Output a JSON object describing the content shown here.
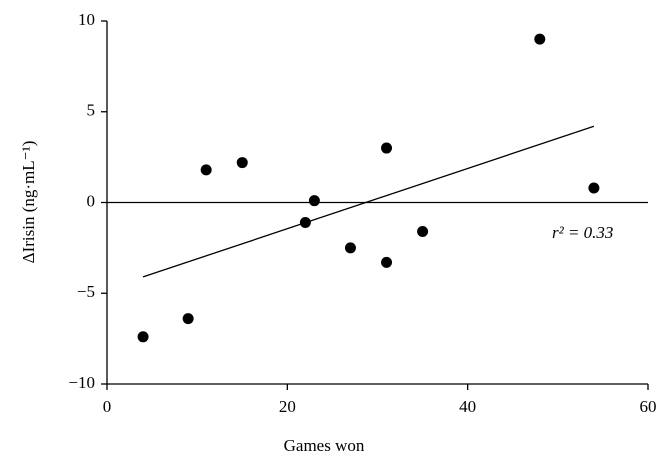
{
  "chart_data": {
    "type": "scatter",
    "x_label": "Games won",
    "y_label": "ΔIrisin (ng·mL⁻¹)",
    "annotation": "r² = 0.33",
    "x": [
      4,
      9,
      11,
      15,
      22,
      23,
      27,
      31,
      31,
      35,
      48,
      54
    ],
    "values": [
      -7.4,
      -6.4,
      1.8,
      2.2,
      -1.1,
      0.1,
      -2.5,
      3.0,
      -3.3,
      -1.6,
      9.0,
      0.8
    ],
    "color": "#000000",
    "trendline": {
      "x": [
        4,
        54
      ],
      "y": [
        -4.1,
        4.2
      ]
    },
    "zero_line": true,
    "xlim": [
      0,
      60
    ],
    "xticks": [
      0,
      20,
      40,
      60
    ],
    "ylim": [
      -10,
      10
    ],
    "yticks": [
      {
        "value": -10,
        "label": "−10"
      },
      {
        "value": -5,
        "label": "−5"
      },
      0,
      5,
      10
    ]
  }
}
